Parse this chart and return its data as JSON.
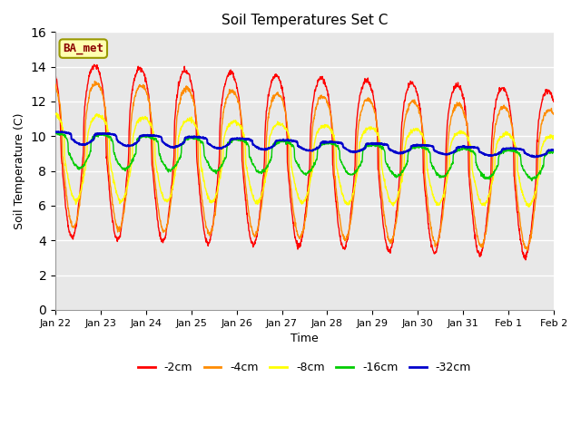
{
  "title": "Soil Temperatures Set C",
  "xlabel": "Time",
  "ylabel": "Soil Temperature (C)",
  "annotation": "BA_met",
  "ylim": [
    0,
    16
  ],
  "yticks": [
    0,
    2,
    4,
    6,
    8,
    10,
    12,
    14,
    16
  ],
  "plot_bg_color": "#e8e8e8",
  "lines": [
    {
      "label": "-2cm",
      "color": "#ff0000",
      "linewidth": 1.0
    },
    {
      "label": "-4cm",
      "color": "#ff8c00",
      "linewidth": 1.0
    },
    {
      "label": "-8cm",
      "color": "#ffff00",
      "linewidth": 1.0
    },
    {
      "label": "-16cm",
      "color": "#00cc00",
      "linewidth": 1.0
    },
    {
      "label": "-32cm",
      "color": "#0000cc",
      "linewidth": 1.5
    }
  ],
  "xticklabels": [
    "Jan 22",
    "Jan 23",
    "Jan 24",
    "Jan 25",
    "Jan 26",
    "Jan 27",
    "Jan 28",
    "Jan 29",
    "Jan 30",
    "Jan 31",
    "Feb 1",
    "Feb 2"
  ],
  "num_days": 11,
  "points_per_day": 144
}
